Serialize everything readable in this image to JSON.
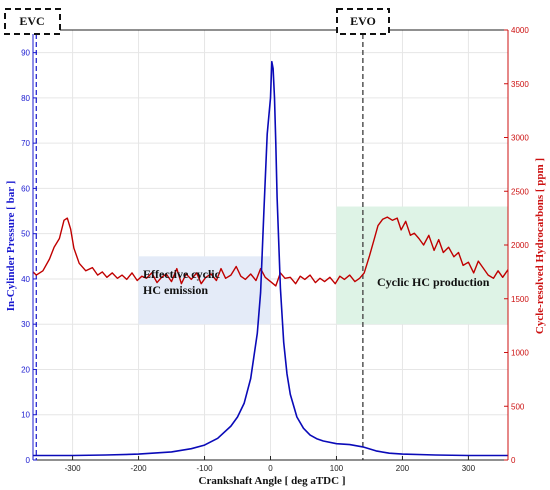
{
  "chart_data": {
    "type": "line",
    "xlabel": "Crankshaft Angle [ deg aTDC ]",
    "ylabel_left": "In-Cylinder Pressure [ bar ]",
    "ylabel_right": "Cycle-resolved Hydrocarbons [ ppm ]",
    "xlim": [
      -360,
      360
    ],
    "ylim_left": [
      0,
      95
    ],
    "ylim_right": [
      0,
      4000
    ],
    "x_ticks": [
      -300,
      -200,
      -100,
      0,
      100,
      200,
      300
    ],
    "y_left_ticks": [
      0,
      10,
      20,
      30,
      40,
      50,
      60,
      70,
      80,
      90
    ],
    "y_right_ticks": [
      0,
      500,
      1000,
      1500,
      2000,
      2500,
      3000,
      3500,
      4000
    ],
    "grid": true,
    "colors": {
      "pressure": "#0a0ab8",
      "hc": "#c00000",
      "left_axis": "#1a1ad0",
      "right_axis": "#cc1010",
      "region_blue": "#e4ebf8",
      "region_green": "#def3e6",
      "marker": "#555555"
    },
    "pressure_series": {
      "axis": "left",
      "x": [
        -360,
        -300,
        -250,
        -200,
        -150,
        -120,
        -100,
        -80,
        -60,
        -50,
        -40,
        -30,
        -20,
        -15,
        -10,
        -5,
        0,
        2,
        4,
        6,
        8,
        10,
        15,
        20,
        25,
        30,
        40,
        50,
        60,
        70,
        80,
        100,
        120,
        140,
        160,
        180,
        200,
        250,
        300,
        360
      ],
      "y": [
        1.0,
        1.0,
        1.1,
        1.3,
        1.8,
        2.5,
        3.3,
        4.8,
        7.5,
        9.5,
        12.5,
        18.0,
        28.0,
        37.0,
        55.0,
        72.0,
        80.0,
        88.0,
        86.5,
        80.0,
        70.0,
        58.0,
        38.0,
        26.0,
        19.0,
        14.5,
        9.5,
        7.0,
        5.5,
        4.7,
        4.2,
        3.6,
        3.4,
        2.9,
        2.0,
        1.5,
        1.3,
        1.1,
        1.0,
        1.0
      ]
    },
    "hc_series": {
      "axis": "right",
      "x": [
        -360,
        -355,
        -345,
        -335,
        -328,
        -320,
        -313,
        -308,
        -303,
        -298,
        -290,
        -280,
        -270,
        -262,
        -255,
        -248,
        -240,
        -232,
        -225,
        -218,
        -210,
        -202,
        -195,
        -188,
        -180,
        -172,
        -165,
        -158,
        -150,
        -142,
        -135,
        -128,
        -120,
        -112,
        -105,
        -98,
        -90,
        -82,
        -75,
        -68,
        -60,
        -52,
        -45,
        -38,
        -30,
        -22,
        -15,
        -8,
        0,
        8,
        15,
        22,
        30,
        38,
        45,
        52,
        60,
        68,
        75,
        82,
        90,
        98,
        105,
        112,
        120,
        128,
        135,
        142,
        150,
        157,
        163,
        170,
        177,
        185,
        192,
        198,
        205,
        212,
        218,
        225,
        232,
        240,
        248,
        255,
        262,
        270,
        278,
        285,
        292,
        300,
        308,
        315,
        322,
        330,
        338,
        345,
        352,
        360
      ],
      "y": [
        1750,
        1720,
        1760,
        1870,
        1980,
        2060,
        2230,
        2250,
        2150,
        1970,
        1830,
        1760,
        1790,
        1720,
        1750,
        1700,
        1740,
        1690,
        1720,
        1680,
        1740,
        1670,
        1710,
        1690,
        1740,
        1650,
        1700,
        1730,
        1660,
        1780,
        1640,
        1730,
        1680,
        1740,
        1640,
        1700,
        1730,
        1670,
        1780,
        1690,
        1720,
        1800,
        1710,
        1680,
        1730,
        1670,
        1780,
        1700,
        1660,
        1620,
        1740,
        1690,
        1700,
        1640,
        1710,
        1680,
        1720,
        1650,
        1690,
        1660,
        1700,
        1640,
        1710,
        1680,
        1720,
        1660,
        1690,
        1740,
        1900,
        2050,
        2180,
        2240,
        2260,
        2230,
        2250,
        2140,
        2220,
        2090,
        2110,
        2060,
        2000,
        2090,
        1950,
        2050,
        1930,
        1980,
        1890,
        1930,
        1810,
        1840,
        1740,
        1850,
        1790,
        1720,
        1690,
        1760,
        1700,
        1770
      ]
    },
    "annotations": {
      "evc": {
        "label": "EVC",
        "x": -355
      },
      "evo": {
        "label": "EVO",
        "x": 140
      },
      "region_blue": {
        "label_line1": "Effective cyclic",
        "label_line2": "HC emission",
        "x_range": [
          -200,
          0
        ],
        "y_left_range": [
          30,
          45
        ]
      },
      "region_green": {
        "label": "Cyclic HC production",
        "x_range": [
          100,
          360
        ],
        "y_left_range": [
          30,
          56
        ]
      }
    }
  }
}
